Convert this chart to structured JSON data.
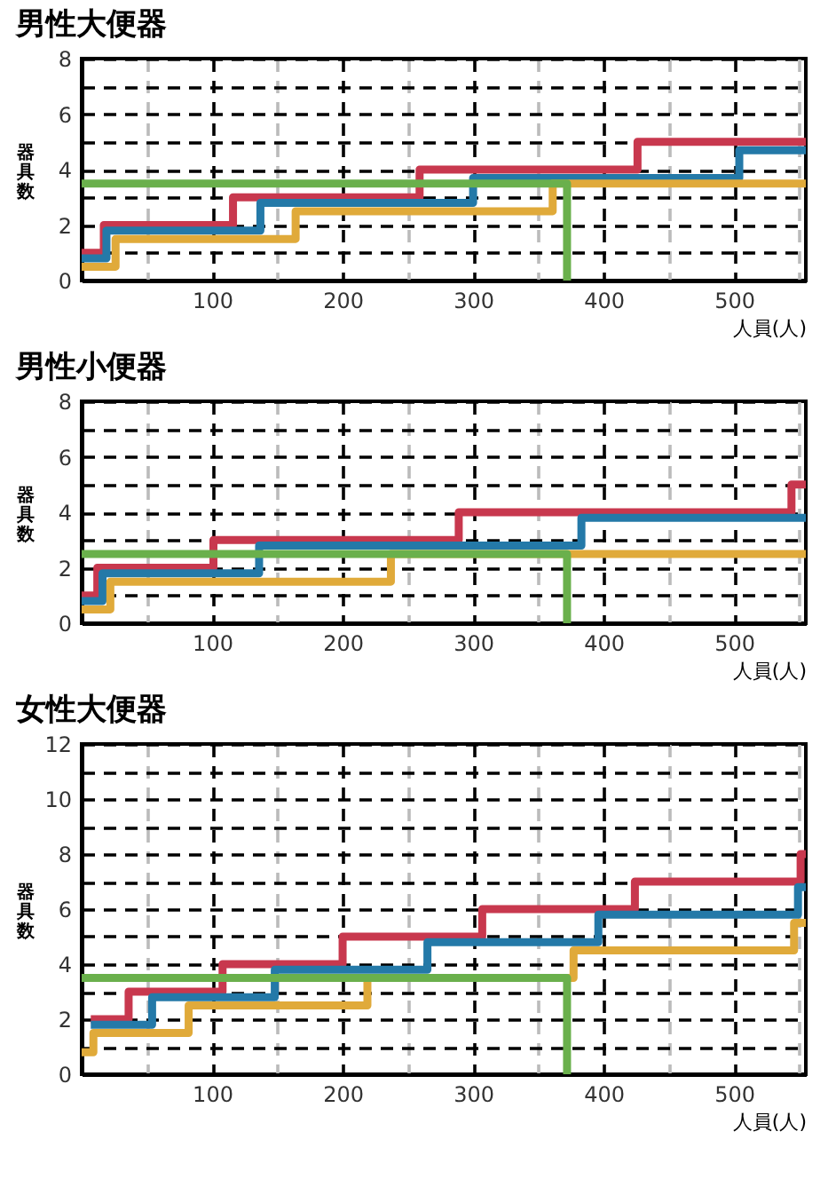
{
  "chart_data": [
    {
      "type": "step",
      "title": "男性大便器",
      "xlabel": "人員(人)",
      "ylabel": "器具数",
      "xlim": [
        0,
        555
      ],
      "ylim": [
        0,
        8
      ],
      "xticks": [
        {
          "value": 50,
          "label": null
        },
        100,
        {
          "value": 150,
          "label": null
        },
        200,
        {
          "value": 250,
          "label": null
        },
        300,
        {
          "value": 350,
          "label": null
        },
        400,
        {
          "value": 450,
          "label": null
        },
        500,
        {
          "value": 550,
          "label": null
        }
      ],
      "yticks": [
        0,
        {
          "value": 1,
          "label": null
        },
        2,
        {
          "value": 3,
          "label": null
        },
        4,
        {
          "value": 5,
          "label": null
        },
        6,
        {
          "value": 7,
          "label": null
        },
        8
      ],
      "grid": true,
      "line_style": "solid",
      "series": [
        {
          "color": "#c8384e",
          "x": [
            0,
            17,
            116,
            259,
            426,
            555
          ],
          "values": [
            1,
            2,
            3,
            4,
            5,
            5
          ]
        },
        {
          "color": "#2479a8",
          "x": [
            0,
            19,
            137,
            300,
            504,
            555
          ],
          "values": [
            0.8,
            1.8,
            2.8,
            3.7,
            4.7,
            4.7
          ]
        },
        {
          "color": "#e0aa3a",
          "x": [
            0,
            26,
            164,
            361,
            555
          ],
          "values": [
            0.5,
            1.5,
            2.5,
            3.5,
            3.5
          ]
        },
        {
          "type": "line",
          "color": "#6ab04c",
          "x": [
            0,
            372,
            372
          ],
          "values": [
            3.5,
            3.5,
            0
          ]
        }
      ]
    },
    {
      "type": "step",
      "title": "男性小便器",
      "xlabel": "人員(人)",
      "ylabel": "器具数",
      "xlim": [
        0,
        555
      ],
      "ylim": [
        0,
        8
      ],
      "xticks": [
        {
          "value": 50,
          "label": null
        },
        100,
        {
          "value": 150,
          "label": null
        },
        200,
        {
          "value": 250,
          "label": null
        },
        300,
        {
          "value": 350,
          "label": null
        },
        400,
        {
          "value": 450,
          "label": null
        },
        500,
        {
          "value": 550,
          "label": null
        }
      ],
      "yticks": [
        0,
        {
          "value": 1,
          "label": null
        },
        2,
        {
          "value": 3,
          "label": null
        },
        4,
        {
          "value": 5,
          "label": null
        },
        6,
        {
          "value": 7,
          "label": null
        },
        8
      ],
      "grid": true,
      "line_style": "solid",
      "series": [
        {
          "color": "#c8384e",
          "x": [
            0,
            12,
            101,
            289,
            544,
            555
          ],
          "values": [
            1,
            2,
            3,
            4,
            5,
            5
          ]
        },
        {
          "color": "#2479a8",
          "x": [
            0,
            16,
            136,
            383,
            555
          ],
          "values": [
            0.8,
            1.8,
            2.8,
            3.8,
            3.8
          ]
        },
        {
          "color": "#e0aa3a",
          "x": [
            0,
            22,
            237,
            555
          ],
          "values": [
            0.5,
            1.5,
            2.5,
            2.5
          ]
        },
        {
          "type": "line",
          "color": "#6ab04c",
          "x": [
            0,
            372,
            372
          ],
          "values": [
            2.5,
            2.5,
            0
          ]
        }
      ]
    },
    {
      "type": "step",
      "title": "女性大便器",
      "xlabel": "人員(人)",
      "ylabel": "器具数",
      "xlim": [
        0,
        555
      ],
      "ylim": [
        0,
        12
      ],
      "xticks": [
        {
          "value": 50,
          "label": null
        },
        100,
        {
          "value": 150,
          "label": null
        },
        200,
        {
          "value": 250,
          "label": null
        },
        300,
        {
          "value": 350,
          "label": null
        },
        400,
        {
          "value": 450,
          "label": null
        },
        500,
        {
          "value": 550,
          "label": null
        }
      ],
      "yticks": [
        0,
        {
          "value": 1,
          "label": null
        },
        2,
        {
          "value": 3,
          "label": null
        },
        4,
        {
          "value": 5,
          "label": null
        },
        6,
        {
          "value": 7,
          "label": null
        },
        8,
        {
          "value": 9,
          "label": null
        },
        10,
        {
          "value": 11,
          "label": null
        },
        12
      ],
      "grid": true,
      "line_style": "solid",
      "series": [
        {
          "color": "#c8384e",
          "x": [
            7,
            36,
            108,
            200,
            307,
            424,
            551,
            555
          ],
          "values": [
            2,
            3,
            4,
            5,
            6,
            7,
            8,
            8
          ]
        },
        {
          "color": "#2479a8",
          "x": [
            7,
            54,
            148,
            265,
            396,
            549,
            555
          ],
          "values": [
            1.8,
            2.8,
            3.8,
            4.8,
            5.8,
            6.8,
            6.8
          ]
        },
        {
          "color": "#e0aa3a",
          "x": [
            0,
            9,
            82,
            219,
            377,
            546,
            555
          ],
          "values": [
            0.8,
            1.5,
            2.5,
            3.5,
            4.5,
            5.5,
            5.5
          ]
        },
        {
          "type": "line",
          "color": "#6ab04c",
          "x": [
            0,
            372,
            372
          ],
          "values": [
            3.5,
            3.5,
            0
          ]
        }
      ]
    }
  ]
}
